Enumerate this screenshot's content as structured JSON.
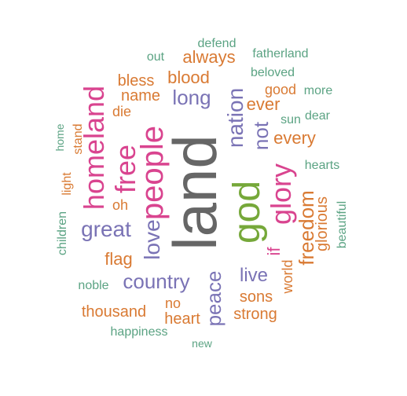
{
  "palette": {
    "green": "#5ba383",
    "orange": "#d97a33",
    "purple": "#7a73b5",
    "magenta": "#d9448f",
    "olive": "#76a83a",
    "grey": "#666666"
  },
  "words": [
    {
      "id": "land",
      "text": "land",
      "color": "grey",
      "vertical": true
    },
    {
      "id": "god",
      "text": "god",
      "color": "olive",
      "vertical": true
    },
    {
      "id": "people",
      "text": "people",
      "color": "magenta",
      "vertical": true
    },
    {
      "id": "homeland",
      "text": "homeland",
      "color": "magenta",
      "vertical": true
    },
    {
      "id": "free",
      "text": "free",
      "color": "magenta",
      "vertical": true
    },
    {
      "id": "glory",
      "text": "glory",
      "color": "magenta",
      "vertical": true
    },
    {
      "id": "nation",
      "text": "nation",
      "color": "purple",
      "vertical": true
    },
    {
      "id": "not",
      "text": "not",
      "color": "purple",
      "vertical": true
    },
    {
      "id": "love",
      "text": "love",
      "color": "purple",
      "vertical": true
    },
    {
      "id": "peace",
      "text": "peace",
      "color": "purple",
      "vertical": true
    },
    {
      "id": "freedom",
      "text": "freedom",
      "color": "orange",
      "vertical": true
    },
    {
      "id": "glorious",
      "text": "glorious",
      "color": "orange",
      "vertical": true
    },
    {
      "id": "if",
      "text": "if",
      "color": "magenta",
      "vertical": true
    },
    {
      "id": "world",
      "text": "world",
      "color": "orange",
      "vertical": true
    },
    {
      "id": "beautiful",
      "text": "beautiful",
      "color": "green",
      "vertical": true
    },
    {
      "id": "children",
      "text": "children",
      "color": "green",
      "vertical": true
    },
    {
      "id": "light",
      "text": "light",
      "color": "orange",
      "vertical": true
    },
    {
      "id": "home",
      "text": "home",
      "color": "green",
      "vertical": true
    },
    {
      "id": "stand",
      "text": "stand",
      "color": "orange",
      "vertical": true
    },
    {
      "id": "great",
      "text": "great",
      "color": "purple",
      "vertical": false
    },
    {
      "id": "country",
      "text": "country",
      "color": "purple",
      "vertical": false
    },
    {
      "id": "long",
      "text": "long",
      "color": "purple",
      "vertical": false
    },
    {
      "id": "live",
      "text": "live",
      "color": "purple",
      "vertical": false
    },
    {
      "id": "ever",
      "text": "ever",
      "color": "orange",
      "vertical": false
    },
    {
      "id": "every",
      "text": "every",
      "color": "orange",
      "vertical": false
    },
    {
      "id": "blood",
      "text": "blood",
      "color": "orange",
      "vertical": false
    },
    {
      "id": "always",
      "text": "always",
      "color": "orange",
      "vertical": false
    },
    {
      "id": "flag",
      "text": "flag",
      "color": "orange",
      "vertical": false
    },
    {
      "id": "name",
      "text": "name",
      "color": "orange",
      "vertical": false
    },
    {
      "id": "bless",
      "text": "bless",
      "color": "orange",
      "vertical": false
    },
    {
      "id": "die",
      "text": "die",
      "color": "orange",
      "vertical": false
    },
    {
      "id": "oh",
      "text": "oh",
      "color": "orange",
      "vertical": false
    },
    {
      "id": "thousand",
      "text": "thousand",
      "color": "orange",
      "vertical": false
    },
    {
      "id": "sons",
      "text": "sons",
      "color": "orange",
      "vertical": false
    },
    {
      "id": "strong",
      "text": "strong",
      "color": "orange",
      "vertical": false
    },
    {
      "id": "heart",
      "text": "heart",
      "color": "orange",
      "vertical": false
    },
    {
      "id": "no",
      "text": "no",
      "color": "orange",
      "vertical": false
    },
    {
      "id": "good",
      "text": "good",
      "color": "orange",
      "vertical": false
    },
    {
      "id": "defend",
      "text": "defend",
      "color": "green",
      "vertical": false
    },
    {
      "id": "fatherland",
      "text": "fatherland",
      "color": "green",
      "vertical": false
    },
    {
      "id": "out",
      "text": "out",
      "color": "green",
      "vertical": false
    },
    {
      "id": "beloved",
      "text": "beloved",
      "color": "green",
      "vertical": false
    },
    {
      "id": "more",
      "text": "more",
      "color": "green",
      "vertical": false
    },
    {
      "id": "sun",
      "text": "sun",
      "color": "green",
      "vertical": false
    },
    {
      "id": "dear",
      "text": "dear",
      "color": "green",
      "vertical": false
    },
    {
      "id": "hearts",
      "text": "hearts",
      "color": "green",
      "vertical": false
    },
    {
      "id": "noble",
      "text": "noble",
      "color": "green",
      "vertical": false
    },
    {
      "id": "happiness",
      "text": "happiness",
      "color": "green",
      "vertical": false
    },
    {
      "id": "new",
      "text": "new",
      "color": "green",
      "vertical": false
    }
  ]
}
